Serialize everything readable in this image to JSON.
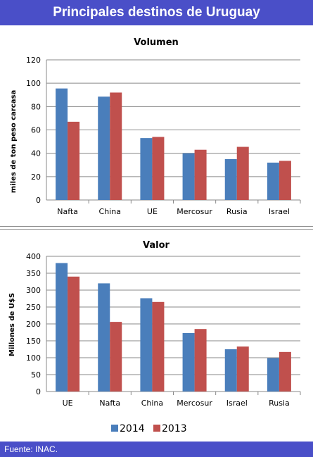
{
  "header": {
    "title": "Principales destinos de Uruguay"
  },
  "footer": {
    "source": "Fuente: INAC."
  },
  "colors": {
    "header_bg": "#4a4fc8",
    "series_2014": "#4a7ebb",
    "series_2013": "#c0504d"
  },
  "legend": [
    {
      "name": "2014",
      "color": "#4a7ebb"
    },
    {
      "name": "2013",
      "color": "#c0504d"
    }
  ],
  "chart_data": [
    {
      "type": "bar",
      "title": "Volumen",
      "ylabel": "miles de ton peso carcasa",
      "xlabel": "",
      "categories": [
        "Nafta",
        "China",
        "UE",
        "Mercosur",
        "Rusia",
        "Israel"
      ],
      "series": [
        {
          "name": "2014",
          "values": [
            95.5,
            88.5,
            53,
            40,
            35,
            32
          ]
        },
        {
          "name": "2013",
          "values": [
            67,
            92,
            54,
            43,
            45.5,
            33.5
          ]
        }
      ],
      "ylim": [
        0,
        120
      ],
      "yticks": [
        "0",
        "20",
        "40",
        "60",
        "80",
        "100",
        "120"
      ],
      "grid": true,
      "legend_position": "bottom"
    },
    {
      "type": "bar",
      "title": "Valor",
      "ylabel": "Millones de U$S",
      "xlabel": "",
      "categories": [
        "UE",
        "Nafta",
        "China",
        "Mercosur",
        "Israel",
        "Rusia"
      ],
      "series": [
        {
          "name": "2014",
          "values": [
            380,
            320,
            276,
            173,
            125,
            99
          ]
        },
        {
          "name": "2013",
          "values": [
            340,
            206,
            265,
            185,
            133,
            117
          ]
        }
      ],
      "ylim": [
        0,
        400
      ],
      "yticks": [
        "0",
        "50",
        "100",
        "150",
        "200",
        "250",
        "300",
        "350",
        "400"
      ],
      "grid": true,
      "legend_position": "bottom"
    }
  ]
}
